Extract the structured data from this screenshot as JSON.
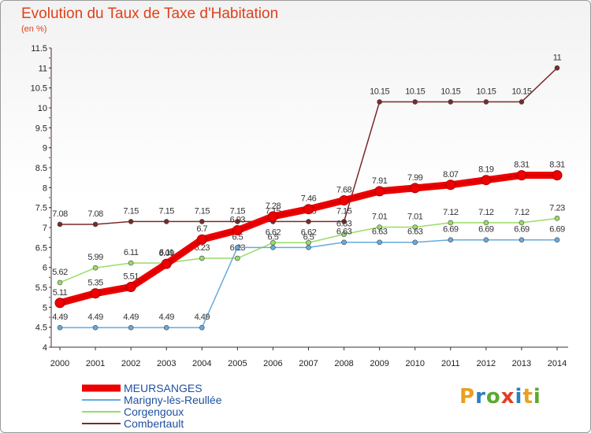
{
  "title": "Evolution du Taux de Taxe d'Habitation",
  "unit": "(en %)",
  "logo": {
    "text": "Proxiti",
    "colors": [
      "#e8a020",
      "#2a7fc0",
      "#5aaa30",
      "#e04020",
      "#2a7fc0",
      "#e8a020",
      "#5aaa30"
    ]
  },
  "chart_data": {
    "type": "line",
    "x": [
      2000,
      2001,
      2002,
      2003,
      2004,
      2005,
      2006,
      2007,
      2008,
      2009,
      2010,
      2011,
      2012,
      2013,
      2014
    ],
    "y_ticks": [
      "4",
      "4.5",
      "5",
      "5.5",
      "6",
      "6.5",
      "7",
      "7.5",
      "8",
      "8.5",
      "9",
      "9.5",
      "10",
      "10.5",
      "11",
      "11.5"
    ],
    "ylim": [
      4,
      11.5
    ],
    "grid": false,
    "legend_position": "bottom-left",
    "series": [
      {
        "name": "Combertault",
        "color": "#7a2a2a",
        "values": [
          7.08,
          7.08,
          7.15,
          7.15,
          7.15,
          7.15,
          7.15,
          7.15,
          7.15,
          10.15,
          10.15,
          10.15,
          10.15,
          10.15,
          11
        ],
        "labels": [
          "7.08",
          "7.08",
          "7.15",
          "7.15",
          "7.15",
          "7.15",
          "7.15",
          "7.15",
          "7.15",
          "10.15",
          "10.15",
          "10.15",
          "10.15",
          "10.15",
          "11"
        ]
      },
      {
        "name": "Corgengoux",
        "color": "#99dd66",
        "values": [
          5.62,
          5.99,
          6.11,
          6.11,
          6.23,
          6.23,
          6.62,
          6.62,
          6.83,
          7.01,
          7.01,
          7.12,
          7.12,
          7.12,
          7.23
        ],
        "labels": [
          "5.62",
          "5.99",
          "6.11",
          "6.11",
          "6.23",
          "6.23",
          "6.62",
          "6.62",
          "6.83",
          "7.01",
          "7.01",
          "7.12",
          "7.12",
          "7.12",
          "7.23"
        ]
      },
      {
        "name": "Marigny-lès-Reullée",
        "color": "#66aadd",
        "values": [
          4.49,
          4.49,
          4.49,
          4.49,
          4.49,
          6.5,
          6.5,
          6.5,
          6.63,
          6.63,
          6.63,
          6.69,
          6.69,
          6.69,
          6.69
        ],
        "labels": [
          "4.49",
          "4.49",
          "4.49",
          "4.49",
          "4.49",
          "6.5",
          "6.5",
          "6.5",
          "6.63",
          "6.63",
          "6.63",
          "6.69",
          "6.69",
          "6.69",
          "6.69"
        ]
      },
      {
        "name": "MEURSANGES",
        "color": "#ee0000",
        "values": [
          5.11,
          5.35,
          5.51,
          6.09,
          6.7,
          6.93,
          7.28,
          7.46,
          7.68,
          7.91,
          7.99,
          8.07,
          8.19,
          8.31,
          8.31
        ],
        "labels": [
          "5.11",
          "5.35",
          "5.51",
          "6.09",
          "6.7",
          "6.93",
          "7.28",
          "7.46",
          "7.68",
          "7.91",
          "7.99",
          "8.07",
          "8.19",
          "8.31",
          "8.31"
        ]
      }
    ],
    "legend": [
      "MEURSANGES",
      "Marigny-lès-Reullée",
      "Corgengoux",
      "Combertault"
    ]
  }
}
